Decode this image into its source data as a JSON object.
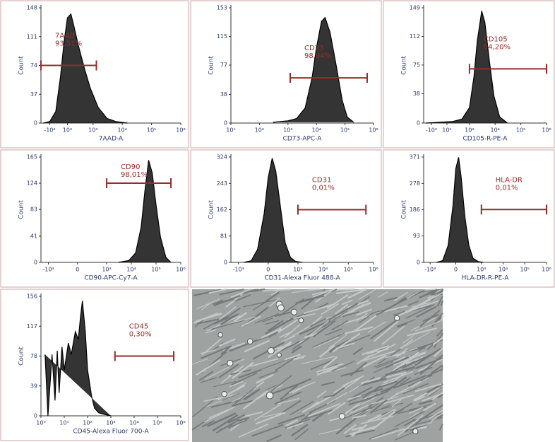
{
  "chart_data": [
    {
      "type": "line",
      "x_label": "7AAD-A",
      "y_label": "Count",
      "xscale": "biex",
      "x": [
        -200,
        -100,
        -30,
        20,
        60,
        100,
        150,
        200,
        300,
        500,
        800,
        1500,
        3000,
        6000,
        15000
      ],
      "values": [
        0,
        2,
        15,
        60,
        105,
        135,
        140,
        125,
        100,
        70,
        45,
        20,
        6,
        2,
        0
      ],
      "xlim": [
        -250,
        1000000
      ],
      "ylim": [
        0,
        148
      ],
      "xticks": [
        {
          "value": -100,
          "label": "-10²"
        },
        {
          "value": 100,
          "label": "10²"
        },
        {
          "value": 1000,
          "label": "10³"
        },
        {
          "value": 10000,
          "label": "10⁴"
        },
        {
          "value": 100000,
          "label": "10⁵"
        },
        {
          "value": 1000000,
          "label": "10⁶"
        }
      ],
      "yticks": [
        0,
        37,
        74,
        111,
        148
      ],
      "gate": {
        "label": "7AAD",
        "percent": "93,51%",
        "x": [
          -250,
          1300
        ],
        "y": 74
      }
    },
    {
      "type": "line",
      "x_label": "CD73-APC-A",
      "y_label": "Count",
      "xscale": "log",
      "x": [
        300,
        1000,
        2000,
        4000,
        7000,
        10000,
        15000,
        20000,
        30000,
        50000,
        80000,
        120000,
        200000
      ],
      "values": [
        1,
        3,
        6,
        20,
        60,
        100,
        135,
        140,
        120,
        75,
        30,
        8,
        1
      ],
      "xlim": [
        10,
        1000000
      ],
      "ylim": [
        0,
        153
      ],
      "xticks": [
        {
          "value": 10,
          "label": "10¹"
        },
        {
          "value": 100,
          "label": "10²"
        },
        {
          "value": 1000,
          "label": "10³"
        },
        {
          "value": 10000,
          "label": "10⁴"
        },
        {
          "value": 100000,
          "label": "10⁵"
        },
        {
          "value": 1000000,
          "label": "10⁶"
        }
      ],
      "yticks": [
        0,
        38,
        77,
        115,
        153
      ],
      "gate": {
        "label": "CD73",
        "percent": "98,04%",
        "x": [
          1200,
          600000
        ],
        "y": 60
      }
    },
    {
      "type": "line",
      "x_label": "CD105-R-PE-A",
      "y_label": "Count",
      "xscale": "biex",
      "x": [
        -200,
        0,
        200,
        500,
        1000,
        1500,
        2000,
        3000,
        4000,
        6000,
        9000,
        15000,
        30000
      ],
      "values": [
        0,
        1,
        2,
        5,
        20,
        60,
        105,
        145,
        130,
        80,
        35,
        8,
        0
      ],
      "xlim": [
        -250,
        1000000
      ],
      "ylim": [
        0,
        149
      ],
      "xticks": [
        {
          "value": -100,
          "label": "-10²"
        },
        {
          "value": 100,
          "label": "10²"
        },
        {
          "value": 1000,
          "label": "10³"
        },
        {
          "value": 10000,
          "label": "10⁴"
        },
        {
          "value": 100000,
          "label": "10⁵"
        },
        {
          "value": 1000000,
          "label": "10⁶"
        }
      ],
      "yticks": [
        0,
        38,
        75,
        112,
        149
      ],
      "gate": {
        "label": "CD105",
        "percent": "94,20%",
        "x": [
          1000,
          1000000
        ],
        "y": 70
      }
    },
    {
      "type": "line",
      "x_label": "CD90-APC-Cy7-A",
      "y_label": "Count",
      "xscale": "biex",
      "x": [
        3000,
        8000,
        15000,
        25000,
        35000,
        50000,
        70000,
        100000,
        150000,
        250000,
        400000
      ],
      "values": [
        0,
        3,
        15,
        55,
        110,
        160,
        140,
        90,
        40,
        8,
        0
      ],
      "xlim": [
        -2000,
        1000000
      ],
      "ylim": [
        0,
        165
      ],
      "xticks": [
        {
          "value": -1000,
          "label": "-10³"
        },
        0,
        {
          "value": 1000,
          "label": "10³"
        },
        {
          "value": 10000,
          "label": "10⁴"
        },
        {
          "value": 100000,
          "label": "10⁵"
        },
        {
          "value": 1000000,
          "label": "10⁶"
        }
      ],
      "yticks": [
        0,
        41,
        83,
        124,
        165
      ],
      "gate": {
        "label": "CD90",
        "percent": "98,01%",
        "x": [
          1000,
          400000
        ],
        "y": 124
      }
    },
    {
      "type": "line",
      "x_label": "CD31-Alexa Fluor 488-A",
      "y_label": "Count",
      "xscale": "biex",
      "x": [
        -600,
        -300,
        -150,
        -50,
        0,
        50,
        100,
        200,
        300,
        500,
        800,
        1500
      ],
      "values": [
        0,
        5,
        40,
        150,
        260,
        320,
        280,
        150,
        60,
        15,
        3,
        0
      ],
      "xlim": [
        -2000,
        1000000
      ],
      "ylim": [
        0,
        324
      ],
      "xticks": [
        {
          "value": -1000,
          "label": "-10³"
        },
        0,
        {
          "value": 1000,
          "label": "10³"
        },
        {
          "value": 10000,
          "label": "10⁴"
        },
        {
          "value": 100000,
          "label": "10⁵"
        },
        {
          "value": 1000000,
          "label": "10⁶"
        }
      ],
      "yticks": [
        0,
        81,
        162,
        243,
        324
      ],
      "gate": {
        "label": "CD31",
        "percent": "0,01%",
        "x": [
          1000,
          500000
        ],
        "y": 162
      }
    },
    {
      "type": "line",
      "x_label": "HLA-DR-R-PE-A",
      "y_label": "Count",
      "xscale": "biex",
      "x": [
        -500,
        -250,
        -120,
        -40,
        0,
        40,
        80,
        150,
        250,
        400,
        700,
        1200
      ],
      "values": [
        0,
        6,
        60,
        200,
        330,
        370,
        300,
        160,
        60,
        15,
        3,
        0
      ],
      "xlim": [
        -2000,
        1000000
      ],
      "ylim": [
        0,
        371
      ],
      "xticks": [
        {
          "value": -1000,
          "label": "-10³"
        },
        0,
        {
          "value": 1000,
          "label": "10³"
        },
        {
          "value": 10000,
          "label": "10⁴"
        },
        {
          "value": 100000,
          "label": "10⁵"
        },
        {
          "value": 1000000,
          "label": "10⁶"
        }
      ],
      "yticks": [
        0,
        93,
        186,
        278,
        371
      ],
      "gate": {
        "label": "HLA-DR",
        "percent": "0,01%",
        "x": [
          1000,
          1000000
        ],
        "y": 186
      }
    },
    {
      "type": "line",
      "x_label": "CD45-Alexa Fluor 700-A",
      "y_label": "Count",
      "xscale": "log",
      "x": [
        1.5,
        2,
        3,
        4,
        5,
        6,
        8,
        10,
        15,
        20,
        30,
        40,
        50,
        60,
        80,
        100,
        150,
        200,
        300,
        500,
        1000
      ],
      "values": [
        80,
        0,
        80,
        20,
        85,
        30,
        90,
        60,
        95,
        80,
        110,
        100,
        130,
        150,
        110,
        60,
        25,
        10,
        4,
        2,
        0
      ],
      "xlim": [
        1,
        1000000
      ],
      "ylim": [
        0,
        156
      ],
      "xticks": [
        {
          "value": 1,
          "label": "10⁰"
        },
        {
          "value": 10,
          "label": "10¹"
        },
        {
          "value": 100,
          "label": "10²"
        },
        {
          "value": 1000,
          "label": "10³"
        },
        {
          "value": 10000,
          "label": "10⁴"
        },
        {
          "value": 100000,
          "label": "10⁵"
        },
        {
          "value": 1000000,
          "label": "10⁶"
        }
      ],
      "yticks": [
        0,
        39,
        78,
        117,
        156
      ],
      "gate": {
        "label": "CD45",
        "percent": "0,30%",
        "x": [
          1500,
          500000
        ],
        "y": 78
      }
    }
  ]
}
